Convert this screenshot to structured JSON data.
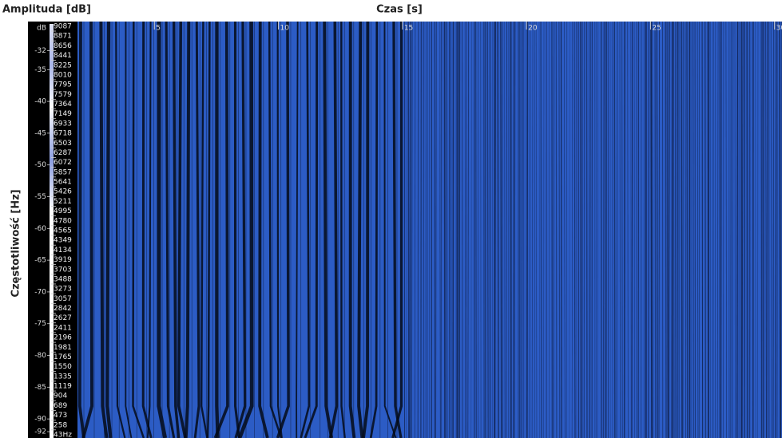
{
  "chart_data": {
    "type": "spectrogram",
    "title": "Czas [s]",
    "amplitude_label": "Amplituda [dB]",
    "ylabel": "Częstotliwość [Hz]",
    "color": "#2c5cc5",
    "xlim": [
      1.9,
      30.3
    ],
    "xticks": [
      5,
      10,
      15,
      20,
      25,
      30
    ],
    "ylim": [
      -28,
      9193
    ],
    "yticks": [
      9087,
      8871,
      8656,
      8441,
      8225,
      8010,
      7795,
      7579,
      7364,
      7149,
      6933,
      6718,
      6503,
      6287,
      6072,
      5857,
      5641,
      5426,
      5211,
      4995,
      4780,
      4565,
      4349,
      4134,
      3919,
      3703,
      3488,
      3273,
      3057,
      2842,
      2627,
      2411,
      2196,
      1981,
      1765,
      1550,
      1335,
      1119,
      904,
      689,
      473,
      258,
      {
        "value": 43,
        "label": "43Hz"
      }
    ],
    "colorbar": {
      "label": "dB",
      "lim": [
        -27.8,
        -93
      ],
      "ticks": [
        -32,
        -35,
        -40,
        -45,
        -50,
        -55,
        -60,
        -65,
        -70,
        -75,
        -80,
        -85,
        -90,
        -92
      ]
    }
  }
}
